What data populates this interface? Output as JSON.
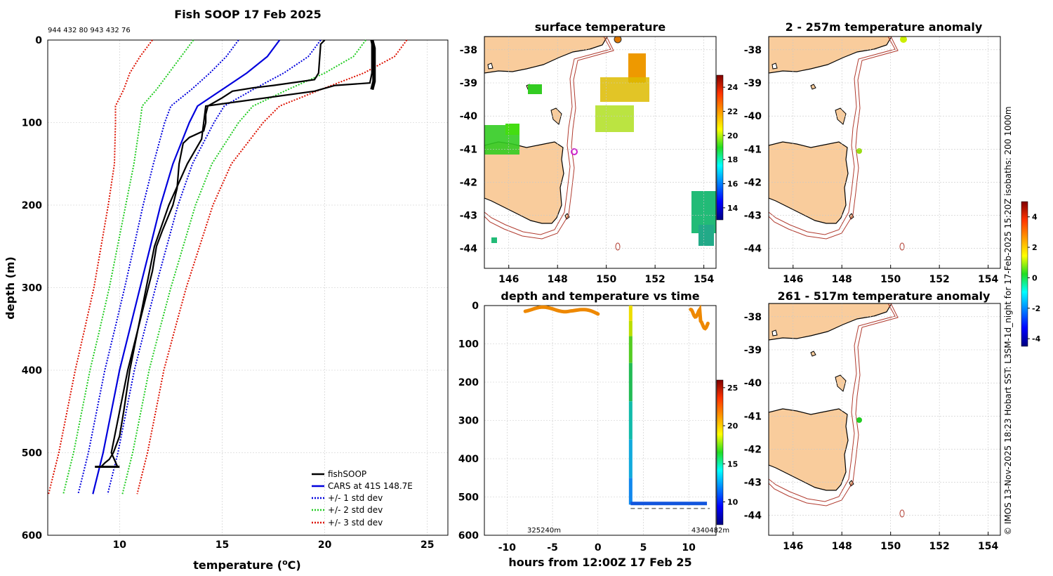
{
  "chart_data": [
    {
      "type": "line",
      "title": "Fish SOOP 17 Feb 2025",
      "header_codes": "944 432 80 943 432 76",
      "xlabel": "temperature (",
      "xlabel_sup": "o",
      "xlabel_end": "C)",
      "ylabel": "depth (m)",
      "xlim": [
        6.5,
        26
      ],
      "ylim": [
        600,
        0
      ],
      "xticks": [
        "10",
        "15",
        "20",
        "25"
      ],
      "yticks": [
        "0",
        "100",
        "200",
        "300",
        "400",
        "500",
        "600"
      ],
      "legend": [
        "fishSOOP",
        "CARS at 41S 148.7E",
        "+/- 1 std dev",
        "+/- 2 std dev",
        "+/- 3 std dev"
      ],
      "colors": {
        "fishsoop": "#000000",
        "cars": "#0000dd",
        "sd1": "#0000dd",
        "sd2": "#22cc22",
        "sd3": "#dd1100"
      },
      "cars": {
        "depth": [
          0,
          20,
          40,
          60,
          80,
          100,
          150,
          200,
          250,
          300,
          350,
          400,
          450,
          500,
          550
        ],
        "temp": [
          17.8,
          17.2,
          16.2,
          15.0,
          13.8,
          13.4,
          12.6,
          12.0,
          11.5,
          11.0,
          10.5,
          10.0,
          9.6,
          9.2,
          8.7
        ],
        "sd1": [
          2.0,
          2.0,
          1.8,
          1.5,
          1.3,
          1.2,
          0.95,
          0.85,
          0.8,
          0.75,
          0.73,
          0.72,
          0.72,
          0.72,
          0.72
        ],
        "sd2": [
          4.2,
          4.2,
          3.8,
          3.2,
          2.7,
          2.4,
          1.9,
          1.7,
          1.6,
          1.5,
          1.46,
          1.44,
          1.44,
          1.44,
          1.44
        ],
        "sd3": [
          6.2,
          6.2,
          5.7,
          4.8,
          4.0,
          3.6,
          2.85,
          2.55,
          2.4,
          2.25,
          2.2,
          2.16,
          2.16,
          2.16,
          2.16
        ]
      },
      "fishsoop_down": {
        "depth": [
          0,
          5,
          40,
          48,
          55,
          58,
          62,
          70,
          80,
          90,
          100,
          110,
          118,
          125,
          150,
          180,
          200,
          230,
          250,
          280,
          300,
          350,
          400,
          450,
          480,
          500,
          508,
          512,
          517
        ],
        "temp": [
          20.0,
          19.8,
          19.7,
          19.5,
          17.5,
          16.5,
          15.5,
          15.0,
          14.3,
          14.2,
          14.2,
          14.1,
          13.4,
          13.1,
          12.9,
          12.8,
          12.6,
          12.1,
          11.8,
          11.6,
          11.4,
          10.9,
          10.5,
          10.2,
          10.0,
          9.7,
          9.5,
          9.3,
          9.1
        ]
      },
      "fishsoop_up": {
        "depth": [
          517,
          500,
          450,
          400,
          350,
          300,
          250,
          200,
          150,
          120,
          100,
          80,
          62,
          55,
          52,
          40,
          20,
          5,
          0
        ],
        "temp": [
          9.9,
          9.6,
          10.0,
          10.4,
          10.9,
          11.3,
          11.7,
          12.4,
          13.3,
          14.0,
          14.1,
          14.2,
          19.5,
          20.5,
          22.2,
          22.3,
          22.3,
          22.3,
          22.3
        ]
      }
    },
    {
      "type": "heatmap",
      "title": "surface temperature",
      "xticks": [
        "146",
        "148",
        "150",
        "152",
        "154"
      ],
      "yticks": [
        "-38",
        "-39",
        "-40",
        "-41",
        "-42",
        "-43",
        "-44"
      ],
      "colorbar_ticks": [
        "14",
        "16",
        "18",
        "20",
        "22",
        "24"
      ],
      "colorbar_range": [
        13,
        25
      ]
    },
    {
      "type": "scatter",
      "title": "depth and temperature vs time",
      "xlabel": "hours from 12:00Z 17 Feb 25",
      "xticks": [
        "-10",
        "-5",
        "0",
        "5",
        "10"
      ],
      "yticks": [
        "0",
        "100",
        "200",
        "300",
        "400",
        "500",
        "600"
      ],
      "xlim": [
        -12.5,
        13
      ],
      "ylim": [
        600,
        0
      ],
      "bottom_labels": [
        "325240m",
        "4340482m"
      ],
      "colorbar_ticks": [
        "10",
        "15",
        "20",
        "25"
      ],
      "colorbar_range": [
        7,
        26
      ]
    },
    {
      "type": "heatmap",
      "title": "2 - 257m temperature anomaly",
      "xticks": [
        "146",
        "148",
        "150",
        "152",
        "154"
      ],
      "yticks": [
        "-38",
        "-39",
        "-40",
        "-41",
        "-42",
        "-43",
        "-44"
      ]
    },
    {
      "type": "heatmap",
      "title": "261 - 517m temperature anomaly",
      "xticks": [
        "146",
        "148",
        "150",
        "152",
        "154"
      ],
      "yticks": [
        "-38",
        "-39",
        "-40",
        "-41",
        "-42",
        "-43",
        "-44"
      ],
      "colorbar_ticks": [
        "4",
        "2",
        "0",
        "-2",
        "-4"
      ],
      "colorbar_range": [
        -4.5,
        5
      ]
    }
  ],
  "credit": "© IMOS 13-Nov-2025 18:23 Hobart SST: L3SM-1d_night for 17-Feb-2025 15:20Z isobaths: 200  1000m"
}
